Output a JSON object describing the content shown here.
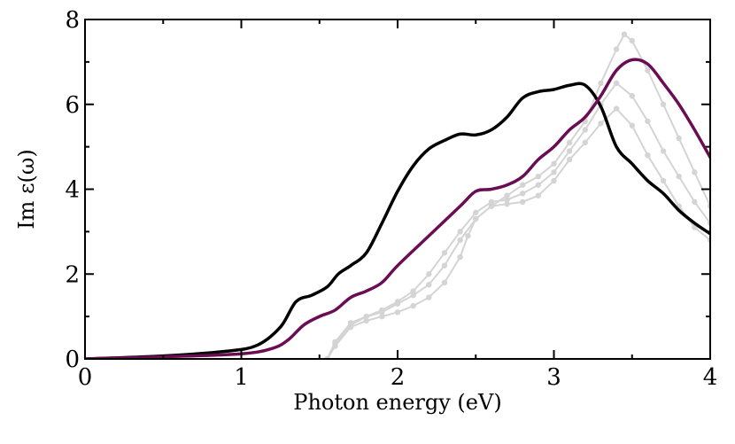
{
  "chart_data": {
    "type": "line",
    "title": "",
    "xlabel": "Photon energy (eV)",
    "ylabel": "Im ε(ω)",
    "xlim": [
      0,
      4
    ],
    "ylim": [
      0,
      8
    ],
    "xticks": [
      0,
      1,
      2,
      3,
      4
    ],
    "yticks": [
      0,
      2,
      4,
      6,
      8
    ],
    "xtick_labels": [
      "0",
      "1",
      "2",
      "3",
      "4"
    ],
    "ytick_labels": [
      "0",
      "2",
      "4",
      "6",
      "8"
    ],
    "grid": false,
    "legend": "none",
    "series": [
      {
        "name": "black curve",
        "color": "#000000",
        "markers": false,
        "x": [
          0,
          0.5,
          0.9,
          1.1,
          1.25,
          1.35,
          1.45,
          1.55,
          1.62,
          1.7,
          1.8,
          1.9,
          2.0,
          2.1,
          2.2,
          2.3,
          2.4,
          2.5,
          2.6,
          2.7,
          2.8,
          2.9,
          3.0,
          3.1,
          3.2,
          3.3,
          3.4,
          3.5,
          3.6,
          3.7,
          3.8,
          3.9,
          4.0
        ],
        "y": [
          0,
          0.07,
          0.18,
          0.32,
          0.75,
          1.35,
          1.5,
          1.7,
          2.0,
          2.2,
          2.5,
          3.2,
          3.95,
          4.55,
          4.95,
          5.15,
          5.3,
          5.28,
          5.4,
          5.7,
          6.15,
          6.3,
          6.35,
          6.45,
          6.45,
          5.95,
          5.0,
          4.6,
          4.2,
          3.9,
          3.5,
          3.2,
          2.95
        ]
      },
      {
        "name": "purple curve",
        "color": "#6a0d52",
        "markers": false,
        "x": [
          0,
          0.5,
          1.0,
          1.2,
          1.3,
          1.4,
          1.5,
          1.6,
          1.7,
          1.8,
          1.9,
          2.0,
          2.2,
          2.4,
          2.5,
          2.6,
          2.7,
          2.8,
          2.9,
          3.0,
          3.1,
          3.2,
          3.3,
          3.4,
          3.5,
          3.6,
          3.7,
          3.8,
          3.9,
          4.0
        ],
        "y": [
          0,
          0.05,
          0.12,
          0.25,
          0.45,
          0.8,
          1.0,
          1.15,
          1.45,
          1.6,
          1.8,
          2.2,
          2.9,
          3.6,
          3.95,
          4.0,
          4.1,
          4.3,
          4.7,
          5.0,
          5.4,
          5.7,
          6.2,
          6.8,
          7.05,
          6.95,
          6.5,
          6.0,
          5.4,
          4.75
        ]
      },
      {
        "name": "gray curve 1",
        "color": "#d4d4d4",
        "markers": true,
        "x": [
          1.55,
          1.6,
          1.7,
          1.8,
          1.9,
          2.0,
          2.1,
          2.2,
          2.3,
          2.4,
          2.5,
          2.6,
          2.7,
          2.8,
          2.9,
          3.0,
          3.1,
          3.2,
          3.3,
          3.4,
          3.45,
          3.5,
          3.6,
          3.7,
          3.8,
          3.9,
          4.0
        ],
        "y": [
          0.0,
          0.4,
          0.85,
          1.0,
          1.1,
          1.3,
          1.5,
          1.75,
          2.2,
          2.8,
          3.3,
          3.6,
          3.85,
          4.1,
          4.3,
          4.6,
          5.1,
          5.6,
          6.5,
          7.3,
          7.65,
          7.5,
          6.8,
          6.0,
          5.2,
          4.4,
          3.6
        ]
      },
      {
        "name": "gray curve 2",
        "color": "#d4d4d4",
        "markers": true,
        "x": [
          1.55,
          1.6,
          1.7,
          1.8,
          1.9,
          2.0,
          2.1,
          2.2,
          2.3,
          2.4,
          2.5,
          2.6,
          2.7,
          2.8,
          2.9,
          3.0,
          3.1,
          3.2,
          3.3,
          3.4,
          3.5,
          3.6,
          3.7,
          3.8,
          3.9,
          4.0
        ],
        "y": [
          0.0,
          0.35,
          0.8,
          1.0,
          1.15,
          1.35,
          1.6,
          2.0,
          2.5,
          3.0,
          3.45,
          3.7,
          3.75,
          3.9,
          4.1,
          4.4,
          4.9,
          5.4,
          6.0,
          6.5,
          6.2,
          5.6,
          4.9,
          4.3,
          3.7,
          3.2
        ]
      },
      {
        "name": "gray curve 3",
        "color": "#d4d4d4",
        "markers": true,
        "x": [
          1.55,
          1.6,
          1.7,
          1.8,
          1.9,
          2.0,
          2.1,
          2.2,
          2.3,
          2.4,
          2.45,
          2.5,
          2.6,
          2.7,
          2.8,
          2.9,
          3.0,
          3.1,
          3.2,
          3.3,
          3.4,
          3.5,
          3.6,
          3.7,
          3.8,
          3.9,
          4.0
        ],
        "y": [
          0.0,
          0.3,
          0.75,
          0.9,
          1.0,
          1.1,
          1.25,
          1.45,
          1.8,
          2.4,
          2.9,
          3.3,
          3.6,
          3.65,
          3.7,
          3.85,
          4.2,
          4.7,
          5.1,
          5.55,
          5.9,
          5.5,
          4.8,
          4.2,
          3.6,
          3.1,
          2.8
        ]
      }
    ]
  }
}
